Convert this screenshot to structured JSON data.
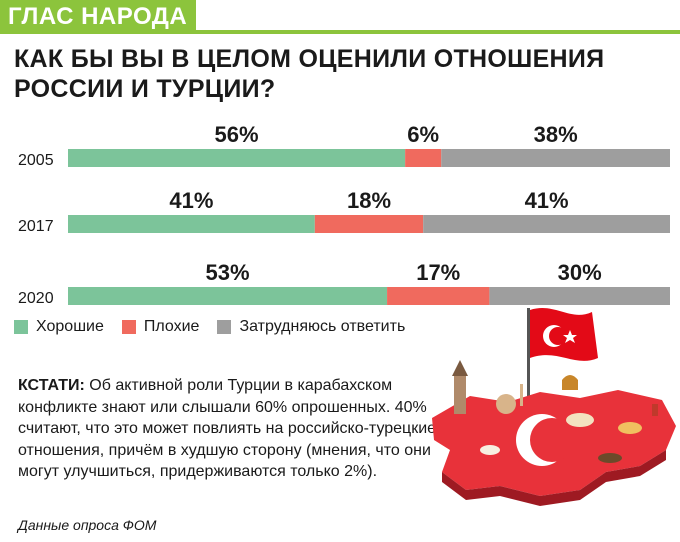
{
  "header": {
    "tag": "ГЛАС НАРОДА"
  },
  "question": "КАК БЫ ВЫ В ЦЕЛОМ ОЦЕНИЛИ ОТНОШЕНИЯ РОССИИ И ТУРЦИИ?",
  "chart_data": {
    "type": "bar",
    "stacked": true,
    "orientation": "horizontal",
    "categories": [
      "2005",
      "2017",
      "2020"
    ],
    "series": [
      {
        "name": "Хорошие",
        "color": "#7cc49a",
        "values": [
          56,
          41,
          53
        ],
        "labels": [
          "56%",
          "41%",
          "53%"
        ]
      },
      {
        "name": "Плохие",
        "color": "#f06a5e",
        "values": [
          6,
          18,
          17
        ],
        "labels": [
          "6%",
          "18%",
          "17%"
        ]
      },
      {
        "name": "Затрудняюсь ответить",
        "color": "#9e9e9e",
        "values": [
          38,
          41,
          30
        ],
        "labels": [
          "38%",
          "41%",
          "30%"
        ]
      }
    ],
    "xlim": [
      0,
      100
    ],
    "legend_position": "bottom-left"
  },
  "note": {
    "lead": "КСТАТИ:",
    "text": " Об активной роли Турции в карабахском конфликте знают или слышали 60% опрошенных. 40% считают, что это может повлиять на российско-турецкие отношения, причём в худшую сторону (мнения, что они могут улучшиться, придерживаются только 2%)."
  },
  "source": "Данные опроса ФОМ",
  "colors": {
    "accent": "#8cc43c",
    "flag_red": "#e30a17"
  }
}
